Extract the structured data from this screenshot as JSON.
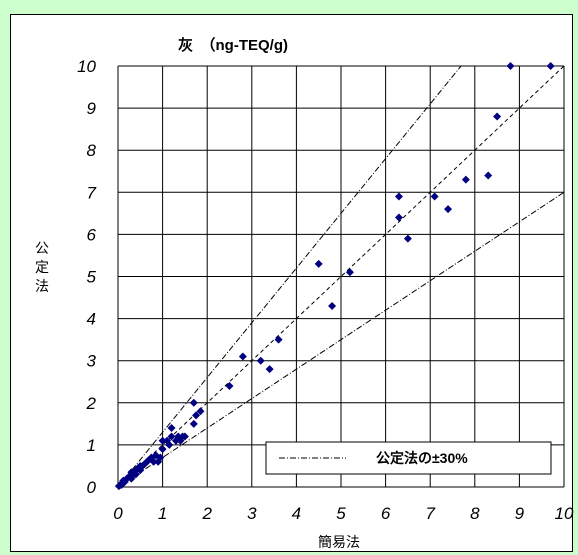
{
  "chart_data": {
    "type": "scatter",
    "title": "灰　（ng-TEQ/g)",
    "xlabel": "簡易法",
    "ylabel": "公定法",
    "xlim": [
      0,
      10
    ],
    "ylim": [
      0,
      10
    ],
    "xticks": [
      "0",
      "1",
      "2",
      "3",
      "4",
      "5",
      "6",
      "7",
      "8",
      "9",
      "10"
    ],
    "yticks": [
      "0",
      "1",
      "2",
      "3",
      "4",
      "5",
      "6",
      "7",
      "8",
      "9",
      "10"
    ],
    "grid": true,
    "legend": {
      "label": "公定法の±30%",
      "position": "bottom-right"
    },
    "colors": {
      "points": "#000080",
      "grid": "#000000",
      "background": "#ccffcc"
    },
    "reference_lines": [
      {
        "style": "dashed",
        "slope": 1.0
      },
      {
        "style": "dash-dot",
        "slope": 1.3
      },
      {
        "style": "dash-dot",
        "slope": 0.7
      }
    ],
    "points": [
      [
        0.02,
        0.02
      ],
      [
        0.05,
        0.05
      ],
      [
        0.08,
        0.05
      ],
      [
        0.1,
        0.1
      ],
      [
        0.12,
        0.15
      ],
      [
        0.15,
        0.12
      ],
      [
        0.2,
        0.2
      ],
      [
        0.25,
        0.25
      ],
      [
        0.3,
        0.2
      ],
      [
        0.3,
        0.35
      ],
      [
        0.35,
        0.3
      ],
      [
        0.4,
        0.3
      ],
      [
        0.4,
        0.4
      ],
      [
        0.45,
        0.45
      ],
      [
        0.5,
        0.4
      ],
      [
        0.5,
        0.5
      ],
      [
        0.55,
        0.5
      ],
      [
        0.6,
        0.55
      ],
      [
        0.65,
        0.6
      ],
      [
        0.7,
        0.65
      ],
      [
        0.75,
        0.7
      ],
      [
        0.8,
        0.6
      ],
      [
        0.85,
        0.75
      ],
      [
        0.9,
        0.6
      ],
      [
        0.95,
        0.7
      ],
      [
        1.0,
        0.9
      ],
      [
        1.0,
        1.1
      ],
      [
        1.1,
        1.1
      ],
      [
        1.15,
        1.0
      ],
      [
        1.2,
        1.2
      ],
      [
        1.2,
        1.4
      ],
      [
        1.3,
        1.1
      ],
      [
        1.35,
        1.2
      ],
      [
        1.4,
        1.1
      ],
      [
        1.45,
        1.2
      ],
      [
        1.5,
        1.2
      ],
      [
        1.7,
        1.5
      ],
      [
        1.7,
        2.0
      ],
      [
        1.75,
        1.7
      ],
      [
        1.85,
        1.8
      ],
      [
        2.5,
        2.4
      ],
      [
        2.8,
        3.1
      ],
      [
        3.2,
        3.0
      ],
      [
        3.4,
        2.8
      ],
      [
        3.6,
        3.5
      ],
      [
        4.5,
        5.3
      ],
      [
        4.8,
        4.3
      ],
      [
        5.2,
        5.1
      ],
      [
        6.3,
        6.9
      ],
      [
        6.3,
        6.4
      ],
      [
        6.5,
        5.9
      ],
      [
        7.1,
        6.9
      ],
      [
        7.4,
        6.6
      ],
      [
        7.8,
        7.3
      ],
      [
        8.3,
        7.4
      ],
      [
        8.5,
        8.8
      ],
      [
        8.8,
        10.0
      ],
      [
        9.7,
        10.0
      ]
    ]
  }
}
